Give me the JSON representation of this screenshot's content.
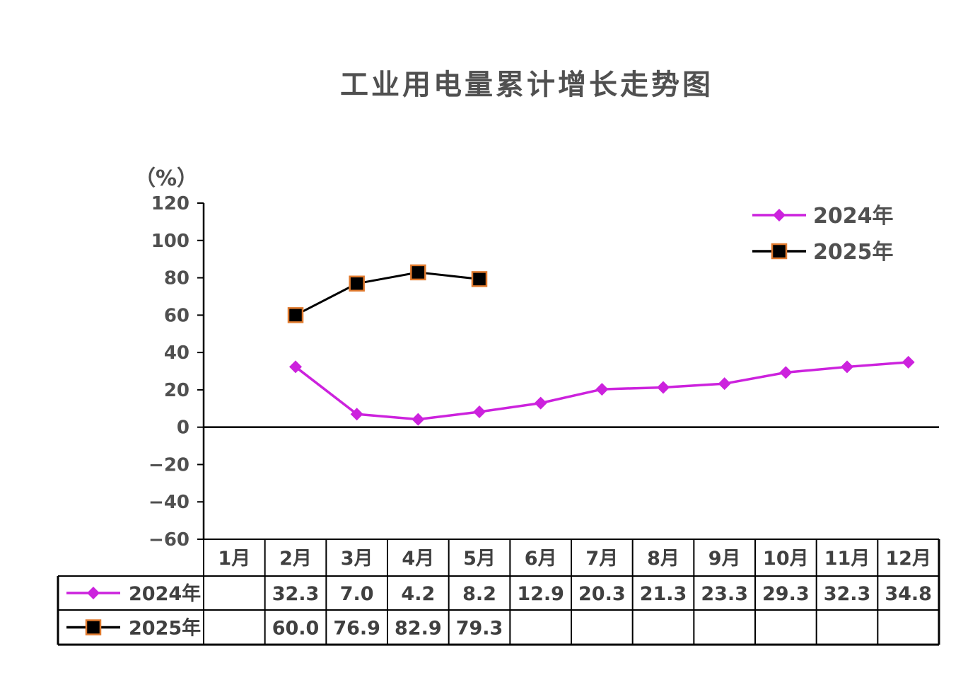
{
  "chart_data": {
    "type": "line",
    "title": "工业用电量累计增长走势图",
    "ylabel": "（%）",
    "ylim": [
      -60,
      120
    ],
    "yticks": [
      120,
      100,
      80,
      60,
      40,
      20,
      0,
      -20,
      -40,
      -60
    ],
    "ytick_labels": [
      "120",
      "100",
      "80",
      "60",
      "40",
      "20",
      "0",
      "−20",
      "−40",
      "−60"
    ],
    "grid": false,
    "legend_position": "top-right",
    "categories": [
      "1月",
      "2月",
      "3月",
      "4月",
      "5月",
      "6月",
      "7月",
      "8月",
      "9月",
      "10月",
      "11月",
      "12月"
    ],
    "series": [
      {
        "name": "2024年",
        "color": "#CC22DD",
        "marker": "diamond",
        "values": [
          null,
          32.3,
          7.0,
          4.2,
          8.2,
          12.9,
          20.3,
          21.3,
          23.3,
          29.3,
          32.3,
          34.8
        ],
        "labels": [
          "",
          "32.3",
          "7.0",
          "4.2",
          "8.2",
          "12.9",
          "20.3",
          "21.3",
          "23.3",
          "29.3",
          "32.3",
          "34.8"
        ]
      },
      {
        "name": "2025年",
        "color": "#000000",
        "marker_edge": "#E07A2E",
        "marker": "square",
        "values": [
          null,
          60.0,
          76.9,
          82.9,
          79.3,
          null,
          null,
          null,
          null,
          null,
          null,
          null
        ],
        "labels": [
          "",
          "60.0",
          "76.9",
          "82.9",
          "79.3",
          "",
          "",
          "",
          "",
          "",
          "",
          ""
        ]
      }
    ]
  }
}
